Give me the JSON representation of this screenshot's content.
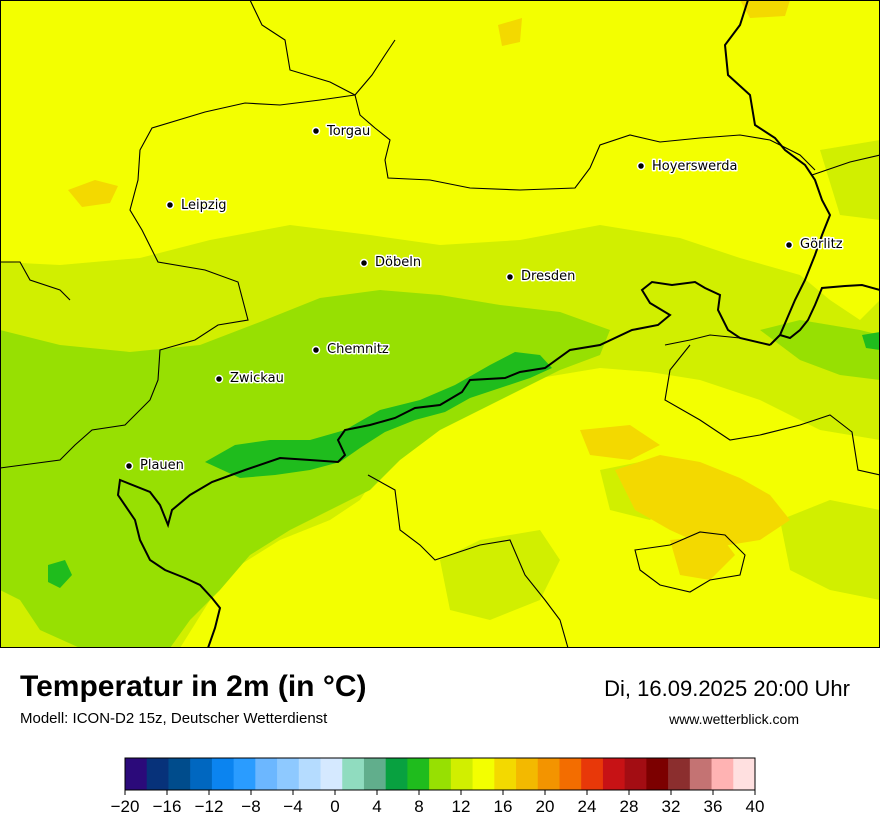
{
  "title": "Temperatur in 2m (in °C)",
  "model": "Modell: ICON-D2 15z, Deutscher Wetterdienst",
  "datetime": "Di, 16.09.2025 20:00 Uhr",
  "website": "www.wetterblick.com",
  "cities": [
    {
      "name": "Torgau"
    },
    {
      "name": "Leipzig"
    },
    {
      "name": "Hoyerswerda"
    },
    {
      "name": "Görlitz"
    },
    {
      "name": "Döbeln"
    },
    {
      "name": "Dresden"
    },
    {
      "name": "Chemnitz"
    },
    {
      "name": "Zwickau"
    },
    {
      "name": "Plauen"
    }
  ],
  "legend": {
    "min": -20,
    "max": 40,
    "colors": [
      "#2b0a7a",
      "#07327a",
      "#004c8c",
      "#0067c0",
      "#0b84f0",
      "#2a9cff",
      "#6cb7ff",
      "#8ec9ff",
      "#b5dcff",
      "#d5e9ff",
      "#90dcbf",
      "#61ae8c",
      "#08a140",
      "#1fbc1d",
      "#97e002",
      "#d1ef00",
      "#f3ff00",
      "#f3d900",
      "#f3b900",
      "#f39400",
      "#f36d00",
      "#e83809",
      "#c71215",
      "#a30d13",
      "#7c0000",
      "#8b2e2e",
      "#c47373",
      "#ffb3b3",
      "#ffe0e0"
    ],
    "ticks": [
      "−20",
      "−16",
      "−12",
      "−8",
      "−4",
      "0",
      "4",
      "8",
      "12",
      "16",
      "20",
      "24",
      "28",
      "32",
      "36",
      "40"
    ]
  }
}
